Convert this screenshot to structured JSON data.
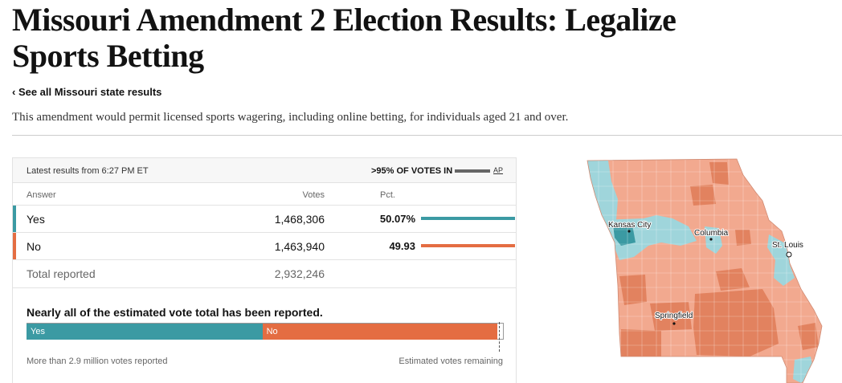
{
  "page": {
    "title": "Missouri Amendment 2 Election Results: Legalize Sports Betting",
    "back_link": "‹ See all Missouri state results",
    "description": "This amendment would permit licensed sports wagering, including online betting, for individuals aged 21 and over."
  },
  "colors": {
    "yes": "#3b9aa3",
    "no": "#e46d42"
  },
  "results": {
    "latest": "Latest results from 6:27 PM ET",
    "votes_in": ">95% OF VOTES IN",
    "source": "AP",
    "headers": {
      "answer": "Answer",
      "votes": "Votes",
      "pct": "Pct."
    },
    "rows": [
      {
        "answer": "Yes",
        "votes": "1,468,306",
        "pct": "50.07%",
        "share": 0.5007
      },
      {
        "answer": "No",
        "votes": "1,463,940",
        "pct": "49.93",
        "share": 0.4993
      }
    ],
    "total": {
      "label": "Total reported",
      "votes": "2,932,246"
    }
  },
  "estimate": {
    "title": "Nearly all of the estimated vote total has been reported.",
    "yes_label": "Yes",
    "no_label": "No",
    "yes_share": 0.4943,
    "no_share": 0.4927,
    "reported_label": "More than 2.9 million votes reported",
    "remaining_label": "Estimated votes remaining"
  },
  "map": {
    "cities": [
      {
        "name": "Kansas City"
      },
      {
        "name": "Columbia"
      },
      {
        "name": "St. Louis"
      },
      {
        "name": "Springfield"
      }
    ]
  }
}
